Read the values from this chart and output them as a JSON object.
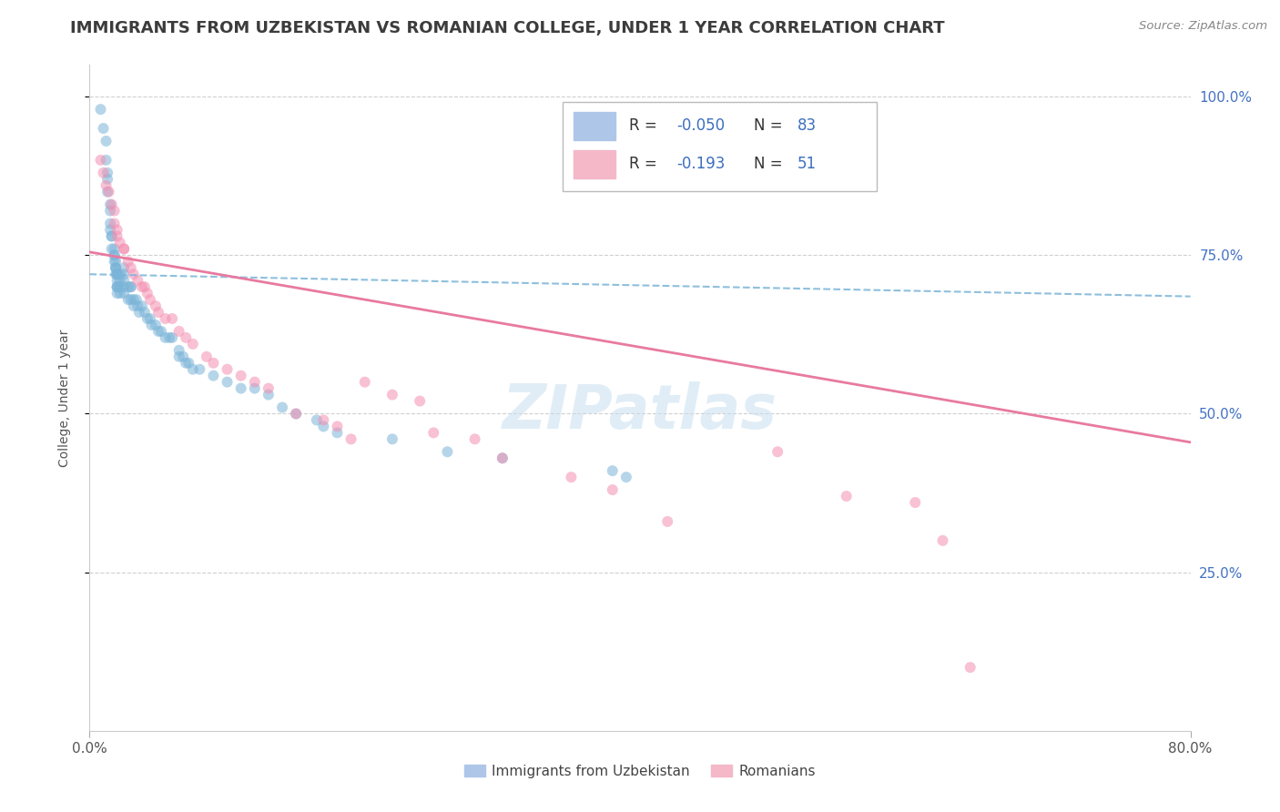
{
  "title": "IMMIGRANTS FROM UZBEKISTAN VS ROMANIAN COLLEGE, UNDER 1 YEAR CORRELATION CHART",
  "source": "Source: ZipAtlas.com",
  "ylabel": "College, Under 1 year",
  "xlim": [
    0.0,
    0.8
  ],
  "ylim": [
    0.0,
    1.05
  ],
  "x_tick_labels": [
    "0.0%",
    "80.0%"
  ],
  "y_tick_labels": [
    "25.0%",
    "50.0%",
    "75.0%",
    "100.0%"
  ],
  "y_ticks": [
    0.25,
    0.5,
    0.75,
    1.0
  ],
  "R_uzbekistan": -0.05,
  "N_uzbekistan": 83,
  "R_romanian": -0.193,
  "N_romanian": 51,
  "watermark": "ZIPatlas",
  "blue_color": "#7ab4d8",
  "pink_color": "#f48fb1",
  "blue_line_color": "#7ab4d8",
  "pink_line_color": "#e87aa0",
  "scatter_alpha": 0.55,
  "scatter_size": 75,
  "grid_color": "#d0d0d0",
  "background_color": "#ffffff",
  "title_color": "#3c3c3c",
  "title_fontsize": 13,
  "ylabel_fontsize": 10,
  "tick_color": "#4472c4",
  "blue_line_y0": 0.72,
  "blue_line_y1": 0.685,
  "pink_line_y0": 0.755,
  "pink_line_y1": 0.455,
  "blue_scatter_x": [
    0.008,
    0.01,
    0.012,
    0.012,
    0.013,
    0.013,
    0.013,
    0.015,
    0.015,
    0.015,
    0.015,
    0.016,
    0.016,
    0.016,
    0.018,
    0.018,
    0.018,
    0.018,
    0.019,
    0.019,
    0.019,
    0.019,
    0.019,
    0.02,
    0.02,
    0.02,
    0.02,
    0.02,
    0.02,
    0.02,
    0.02,
    0.022,
    0.022,
    0.022,
    0.022,
    0.025,
    0.025,
    0.025,
    0.025,
    0.025,
    0.028,
    0.028,
    0.03,
    0.03,
    0.03,
    0.032,
    0.032,
    0.034,
    0.035,
    0.036,
    0.038,
    0.04,
    0.042,
    0.044,
    0.045,
    0.048,
    0.05,
    0.052,
    0.055,
    0.058,
    0.06,
    0.065,
    0.065,
    0.068,
    0.07,
    0.072,
    0.075,
    0.08,
    0.09,
    0.1,
    0.11,
    0.12,
    0.13,
    0.14,
    0.15,
    0.165,
    0.17,
    0.18,
    0.22,
    0.26,
    0.3,
    0.38,
    0.39
  ],
  "blue_scatter_y": [
    0.98,
    0.95,
    0.93,
    0.9,
    0.88,
    0.87,
    0.85,
    0.83,
    0.82,
    0.8,
    0.79,
    0.78,
    0.78,
    0.76,
    0.76,
    0.75,
    0.75,
    0.74,
    0.74,
    0.73,
    0.73,
    0.73,
    0.72,
    0.72,
    0.72,
    0.72,
    0.71,
    0.7,
    0.7,
    0.7,
    0.69,
    0.72,
    0.71,
    0.7,
    0.69,
    0.73,
    0.72,
    0.71,
    0.7,
    0.69,
    0.7,
    0.68,
    0.7,
    0.7,
    0.68,
    0.68,
    0.67,
    0.68,
    0.67,
    0.66,
    0.67,
    0.66,
    0.65,
    0.65,
    0.64,
    0.64,
    0.63,
    0.63,
    0.62,
    0.62,
    0.62,
    0.59,
    0.6,
    0.59,
    0.58,
    0.58,
    0.57,
    0.57,
    0.56,
    0.55,
    0.54,
    0.54,
    0.53,
    0.51,
    0.5,
    0.49,
    0.48,
    0.47,
    0.46,
    0.44,
    0.43,
    0.41,
    0.4
  ],
  "pink_scatter_x": [
    0.008,
    0.01,
    0.012,
    0.014,
    0.016,
    0.018,
    0.018,
    0.02,
    0.02,
    0.022,
    0.025,
    0.025,
    0.028,
    0.03,
    0.032,
    0.035,
    0.038,
    0.04,
    0.042,
    0.044,
    0.048,
    0.05,
    0.055,
    0.06,
    0.065,
    0.07,
    0.075,
    0.085,
    0.09,
    0.1,
    0.11,
    0.12,
    0.13,
    0.15,
    0.17,
    0.18,
    0.19,
    0.2,
    0.22,
    0.24,
    0.25,
    0.28,
    0.3,
    0.35,
    0.38,
    0.42,
    0.5,
    0.55,
    0.6,
    0.62,
    0.64
  ],
  "pink_scatter_y": [
    0.9,
    0.88,
    0.86,
    0.85,
    0.83,
    0.82,
    0.8,
    0.79,
    0.78,
    0.77,
    0.76,
    0.76,
    0.74,
    0.73,
    0.72,
    0.71,
    0.7,
    0.7,
    0.69,
    0.68,
    0.67,
    0.66,
    0.65,
    0.65,
    0.63,
    0.62,
    0.61,
    0.59,
    0.58,
    0.57,
    0.56,
    0.55,
    0.54,
    0.5,
    0.49,
    0.48,
    0.46,
    0.55,
    0.53,
    0.52,
    0.47,
    0.46,
    0.43,
    0.4,
    0.38,
    0.33,
    0.44,
    0.37,
    0.36,
    0.3,
    0.1
  ]
}
